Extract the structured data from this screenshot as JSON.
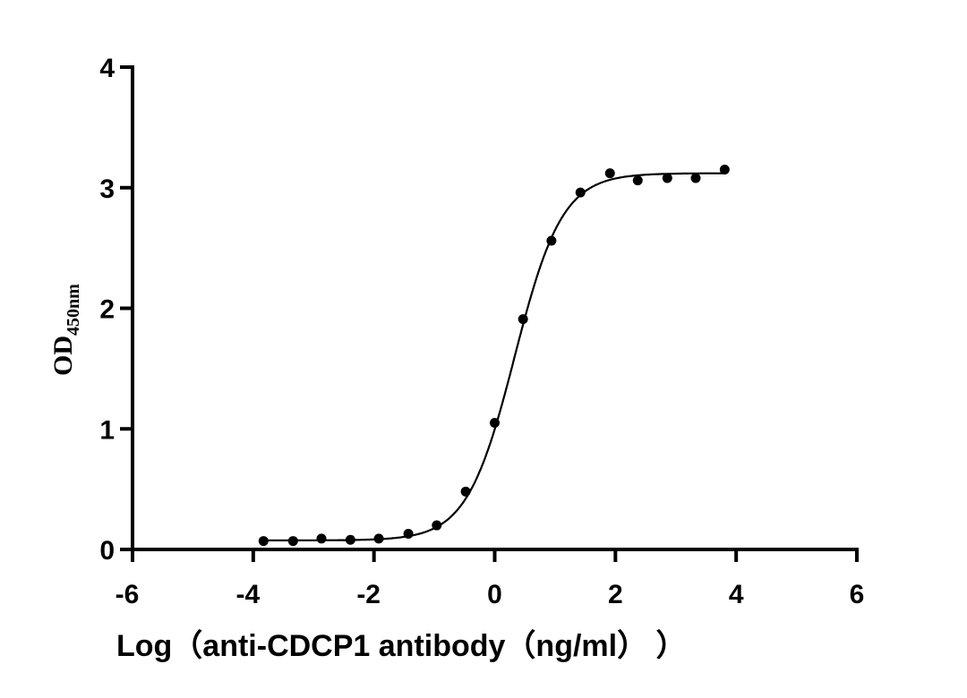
{
  "chart_data": {
    "type": "scatter",
    "title": "",
    "xlabel": "Log（anti-CDCP1 antibody（ng/ml） ）",
    "ylabel": "OD",
    "ylabel_subscript": "450nm",
    "xlim": [
      -6,
      6
    ],
    "ylim": [
      0,
      4
    ],
    "xticks": [
      "-6",
      "-4",
      "-2",
      "0",
      "2",
      "4",
      "6"
    ],
    "yticks": [
      "0",
      "1",
      "2",
      "3",
      "4"
    ],
    "grid": false,
    "fit_curve": "sigmoidal",
    "point_color": "#000000",
    "x": [
      -3.83,
      -3.34,
      -2.87,
      -2.39,
      -1.92,
      -1.43,
      -0.96,
      -0.48,
      0.0,
      0.47,
      0.94,
      1.42,
      1.91,
      2.37,
      2.86,
      3.33,
      3.81
    ],
    "y": [
      0.07,
      0.07,
      0.09,
      0.08,
      0.09,
      0.13,
      0.2,
      0.48,
      1.05,
      1.91,
      2.56,
      2.96,
      3.12,
      3.06,
      3.08,
      3.08,
      3.15
    ]
  }
}
